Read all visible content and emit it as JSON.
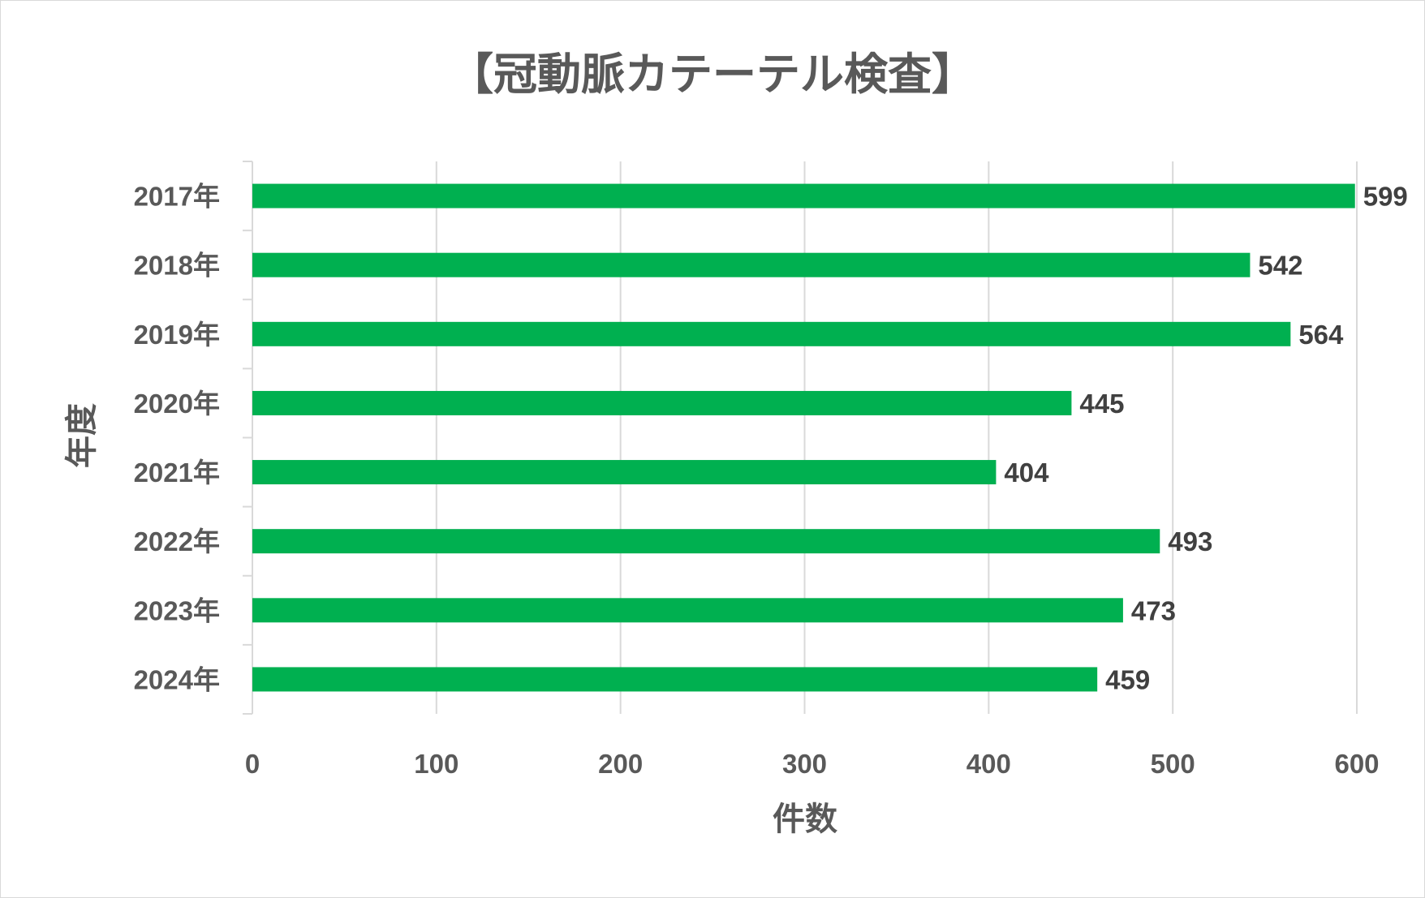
{
  "chart_data": {
    "type": "bar",
    "orientation": "horizontal",
    "title": "【冠動脈カテーテル検査】",
    "xlabel": "件数",
    "ylabel": "年度",
    "categories": [
      "2017年",
      "2018年",
      "2019年",
      "2020年",
      "2021年",
      "2022年",
      "2023年",
      "2024年"
    ],
    "series": [
      {
        "values": [
          599,
          542,
          564,
          445,
          404,
          493,
          473,
          459
        ]
      }
    ],
    "xlim": [
      0,
      600
    ],
    "xticks": [
      0,
      100,
      200,
      300,
      400,
      500,
      600
    ],
    "grid": true,
    "legend": "none",
    "data_labels": true,
    "bar_color": "#00b050",
    "gridline_color": "#d9d9d9",
    "text_color": "#595959"
  }
}
